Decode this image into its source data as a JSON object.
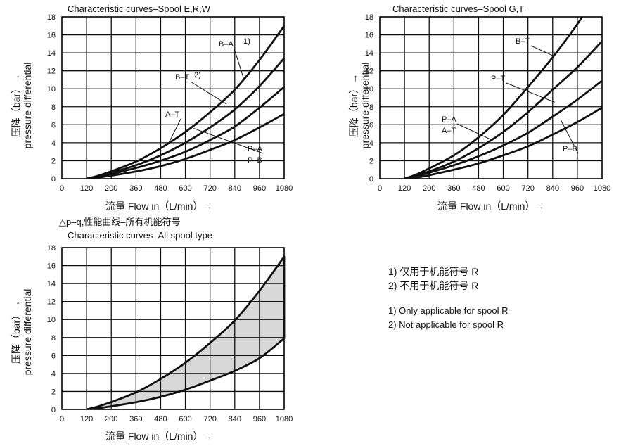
{
  "chart_data": [
    {
      "type": "line",
      "title": "Characteristic curves–Spool E,R,W",
      "xlabel": "流量 Flow in（L/min）→",
      "ylabel_cn": "压降（bar）→",
      "ylabel_en": "pressure differential",
      "x_ticks": [
        "0",
        "120",
        "200",
        "360",
        "480",
        "600",
        "720",
        "840",
        "960",
        "1080"
      ],
      "y_ticks": [
        "0",
        "2",
        "4",
        "6",
        "8",
        "10",
        "12",
        "14",
        "16",
        "18"
      ],
      "xlim": [
        0,
        1080
      ],
      "ylim": [
        0,
        18
      ],
      "grid": true,
      "series": [
        {
          "name": "B–A",
          "note": "1)",
          "x": [
            120,
            200,
            360,
            480,
            600,
            720,
            840,
            960,
            1080
          ],
          "values": [
            0,
            0.5,
            1.9,
            3.4,
            5.2,
            7.4,
            9.9,
            13.2,
            17.0
          ]
        },
        {
          "name": "B–T",
          "note": "2)",
          "x": [
            120,
            200,
            360,
            480,
            600,
            720,
            840,
            960,
            1080
          ],
          "values": [
            0,
            0.4,
            1.5,
            2.6,
            4.0,
            5.7,
            7.7,
            10.3,
            13.4
          ]
        },
        {
          "name": "A–T",
          "x": [
            120,
            200,
            360,
            480,
            600,
            720,
            840,
            960,
            1080
          ],
          "values": [
            0,
            0.3,
            1.2,
            2.0,
            3.0,
            4.3,
            5.8,
            7.9,
            10.2
          ]
        },
        {
          "name": "P–A",
          "name2": "P–B",
          "x": [
            120,
            200,
            360,
            480,
            600,
            720,
            840,
            960,
            1080
          ],
          "values": [
            0,
            0.2,
            0.8,
            1.4,
            2.2,
            3.2,
            4.3,
            5.7,
            7.2
          ]
        }
      ]
    },
    {
      "type": "line",
      "title": "Characteristic curves–Spool G,T",
      "xlabel": "流量 Flow in（L/min）→",
      "ylabel_cn": "压降（bar）→",
      "ylabel_en": "pressure differential",
      "x_ticks": [
        "0",
        "120",
        "200",
        "360",
        "480",
        "600",
        "720",
        "840",
        "960",
        "1080"
      ],
      "y_ticks": [
        "0",
        "2",
        "4",
        "6",
        "8",
        "10",
        "12",
        "14",
        "16",
        "18"
      ],
      "xlim": [
        0,
        1080
      ],
      "ylim": [
        0,
        18
      ],
      "grid": true,
      "series": [
        {
          "name": "B–T",
          "x": [
            120,
            200,
            360,
            480,
            600,
            720,
            840,
            960,
            1010
          ],
          "values": [
            0,
            0.7,
            2.6,
            4.6,
            7.1,
            10.2,
            13.5,
            17.2,
            19.0
          ]
        },
        {
          "name": "P–T",
          "x": [
            120,
            200,
            360,
            480,
            600,
            720,
            840,
            960,
            1080
          ],
          "values": [
            0,
            0.5,
            1.9,
            3.4,
            5.2,
            7.4,
            9.9,
            12.4,
            15.3
          ]
        },
        {
          "name": "P–A",
          "name2": "A–T",
          "x": [
            120,
            200,
            360,
            480,
            600,
            720,
            840,
            960,
            1080
          ],
          "values": [
            0,
            0.4,
            1.5,
            2.5,
            3.7,
            5.1,
            6.9,
            8.8,
            10.9
          ]
        },
        {
          "name": "P–B",
          "x": [
            120,
            200,
            360,
            480,
            600,
            720,
            840,
            960,
            1080
          ],
          "values": [
            0,
            0.2,
            1.0,
            1.7,
            2.6,
            3.6,
            4.9,
            6.3,
            7.9
          ]
        }
      ]
    },
    {
      "type": "area",
      "pretitle": "△p–q,性能曲线–所有机能符号",
      "title": "Characteristic curves–All spool type",
      "xlabel": "流量 Flow in（L/min）→",
      "ylabel_cn": "压降（bar）→",
      "ylabel_en": "pressure differential",
      "x_ticks": [
        "0",
        "120",
        "200",
        "360",
        "480",
        "600",
        "720",
        "840",
        "960",
        "1080"
      ],
      "y_ticks": [
        "0",
        "2",
        "4",
        "6",
        "8",
        "10",
        "12",
        "14",
        "16",
        "18"
      ],
      "xlim": [
        0,
        1080
      ],
      "ylim": [
        0,
        18
      ],
      "grid": true,
      "upper": {
        "x": [
          120,
          200,
          360,
          480,
          600,
          720,
          840,
          960,
          1080
        ],
        "values": [
          0,
          0.5,
          1.9,
          3.4,
          5.2,
          7.4,
          9.9,
          13.2,
          17.0
        ]
      },
      "lower": {
        "x": [
          120,
          200,
          360,
          480,
          600,
          720,
          840,
          960,
          1080
        ],
        "values": [
          0,
          0.2,
          0.8,
          1.4,
          2.2,
          3.2,
          4.3,
          5.7,
          7.9
        ]
      },
      "fill_color": "#d8d8d8"
    }
  ],
  "notes_cn": [
    "1) 仅用于机能符号 R",
    "2) 不用于机能符号 R"
  ],
  "notes_en": [
    "1) Only applicable for spool R",
    "2) Not applicable for spool R"
  ]
}
